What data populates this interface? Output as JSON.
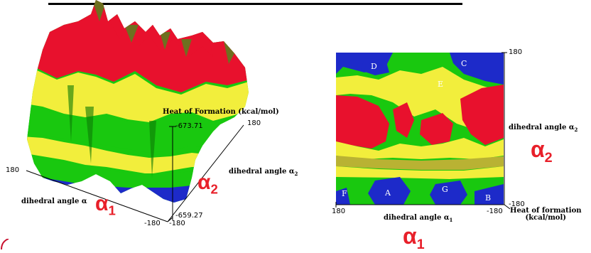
{
  "top_rule": "",
  "left_plot": {
    "z_axis_title": "Heat of Formation (kcal/mol)",
    "z_max_label": "-673.71",
    "z_min_label": "-659.27",
    "tick_180_left": "180",
    "tick_180_right": "180",
    "tick_minus180_a": "-180",
    "tick_minus180_b": "-180",
    "alpha1_axis_label": "dihedral angle α",
    "alpha2_axis_label": "dihedral angle α",
    "alpha2_axis_sub": "2",
    "alpha1_symbol": "α",
    "alpha1_sub": "1",
    "alpha2_symbol": "α",
    "alpha2_sub": "2"
  },
  "right_plot": {
    "regions": [
      "D",
      "C",
      "E",
      "F",
      "A",
      "G",
      "B"
    ],
    "tick_top_right": "180",
    "tick_bottom_right": "-180",
    "tick_bottom_left": "180",
    "tick_bottom_mid": "-180",
    "alpha2_axis_label": "dihedral angle α",
    "alpha2_axis_sub": "2",
    "alpha1_axis_label": "dihedral angle α",
    "alpha1_axis_sub": "1",
    "heat_label_line1": "Heat of formation",
    "heat_label_line2": "(kcal/mol)",
    "alpha2_symbol": "α",
    "alpha2_sub": "2",
    "alpha1_symbol": "α",
    "alpha1_sub": "1"
  },
  "colors": {
    "red": "#e8112d",
    "yellow": "#f2ee3c",
    "green": "#19c80f",
    "blue": "#1d2ac9",
    "olive": "#8a8a2a",
    "annotation_red": "#e8202a"
  }
}
